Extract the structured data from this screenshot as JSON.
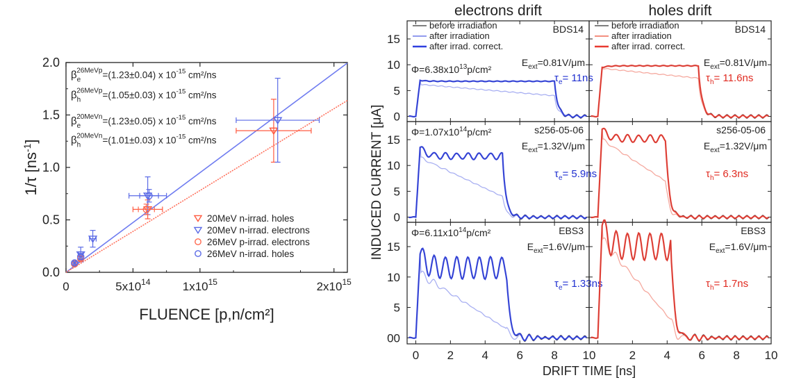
{
  "chart_data": [
    {
      "type": "scatter",
      "id": "left",
      "xlabel": "FLUENCE [p,n/cm²]",
      "ylabel_main": "1/τ [ns",
      "ylabel_sup": "-1",
      "ylabel_tail": "]",
      "xlim": [
        0,
        2100000000000000.0
      ],
      "ylim": [
        0,
        2.0
      ],
      "x_ticks": [
        {
          "value": 0,
          "base": "0",
          "exp": ""
        },
        {
          "value": 500000000000000.0,
          "base": "5x10",
          "exp": "14"
        },
        {
          "value": 1000000000000000.0,
          "base": "1x10",
          "exp": "15"
        },
        {
          "value": 2000000000000000.0,
          "base": "2x10",
          "exp": "15"
        }
      ],
      "y_ticks": [
        {
          "value": 0.0,
          "label": "0.0"
        },
        {
          "value": 0.5,
          "label": "0.5"
        },
        {
          "value": 1.0,
          "label": "1.0"
        },
        {
          "value": 1.5,
          "label": "1.5"
        },
        {
          "value": 2.0,
          "label": "2.0"
        }
      ],
      "annotations": [
        {
          "sym": "β",
          "sub": "e",
          "sup": "26MeVp",
          "text": "=(1.23±0.04) x 10",
          "exp": "-15",
          "unit": " cm²/ns",
          "y": 1.85
        },
        {
          "sym": "β",
          "sub": "h",
          "sup": "26MeVp",
          "text": "=(1.05±0.03) x 10",
          "exp": "-15",
          "unit": " cm²/ns",
          "y": 1.66
        },
        {
          "sym": "β",
          "sub": "e",
          "sup": "20MeVn",
          "text": "=(1.23±0.05) x 10",
          "exp": "-15",
          "unit": " cm²/ns",
          "y": 1.41
        },
        {
          "sym": "β",
          "sub": "h",
          "sup": "20MeVn",
          "text": "=(1.01±0.03) x 10",
          "exp": "-15",
          "unit": " cm²/ns",
          "y": 1.23
        }
      ],
      "fit_lines": [
        {
          "color": "#6f7cf0",
          "slope": 9.5e-16,
          "dashed": false
        },
        {
          "color": "#ff6f5a",
          "slope": 7.8e-16,
          "dashed": true
        }
      ],
      "series": [
        {
          "name": "20MeV n-irrad. holes",
          "marker": "triangle-down",
          "color": "#ff5a40",
          "points": [
            {
              "x": 1550000000000000.0,
              "y": 1.35,
              "xerr": 280000000000000.0,
              "yerr": 0.3
            },
            {
              "x": 610000000000000.0,
              "y": 0.6,
              "xerr": 110000000000000.0,
              "yerr": 0.09
            }
          ]
        },
        {
          "name": "20MeV n-irrad. electrons",
          "marker": "triangle-down",
          "color": "#5a6ae6",
          "points": [
            {
              "x": 1580000000000000.0,
              "y": 1.45,
              "xerr": 310000000000000.0,
              "yerr": 0.4
            },
            {
              "x": 610000000000000.0,
              "y": 0.73,
              "xerr": 140000000000000.0,
              "yerr": 0.18
            },
            {
              "x": 200000000000000.0,
              "y": 0.32,
              "xerr": 25000000000000.0,
              "yerr": 0.08
            },
            {
              "x": 110000000000000.0,
              "y": 0.17,
              "xerr": 15000000000000.0,
              "yerr": 0.07
            }
          ]
        },
        {
          "name": "26MeV p-irrad. electrons",
          "marker": "circle",
          "color": "#ff6a50",
          "points": [
            {
              "x": 600000000000000.0,
              "y": 0.6,
              "xerr": 60000000000000.0,
              "yerr": 0.05
            },
            {
              "x": 110000000000000.0,
              "y": 0.13,
              "xerr": 10000000000000.0,
              "yerr": 0.02
            },
            {
              "x": 64000000000000.0,
              "y": 0.08,
              "xerr": 6000000000000.0,
              "yerr": 0.01
            }
          ]
        },
        {
          "name": "26MeV n-irrad. holes",
          "marker": "circle",
          "color": "#5a6ae6",
          "points": [
            {
              "x": 620000000000000.0,
              "y": 0.73,
              "xerr": 70000000000000.0,
              "yerr": 0.06
            },
            {
              "x": 110000000000000.0,
              "y": 0.15,
              "xerr": 10000000000000.0,
              "yerr": 0.03
            },
            {
              "x": 64000000000000.0,
              "y": 0.09,
              "xerr": 6000000000000.0,
              "yerr": 0.01
            }
          ]
        }
      ]
    },
    {
      "type": "line",
      "id": "right",
      "xlabel": "DRIFT TIME [ns]",
      "ylabel": "INDUCED CURRENT [μA]",
      "column_titles": [
        "electrons drift",
        "holes drift"
      ],
      "xlim": [
        -0.5,
        10
      ],
      "ylim": [
        -1,
        19
      ],
      "x_ticks": [
        0,
        2,
        4,
        6,
        8,
        10
      ],
      "y_ticks": [
        0,
        5,
        10,
        15
      ],
      "x_tick_labels_left": [
        "0",
        "2",
        "4",
        "6",
        "8",
        "10"
      ],
      "x_tick_labels_right": [
        "0",
        "2",
        "4",
        "6",
        "8",
        "10"
      ],
      "y_tick_labels": [
        [
          "15",
          "10",
          "5",
          "0"
        ],
        [
          "15",
          "10",
          "5",
          "0"
        ],
        [
          "15",
          "10",
          "5",
          "00"
        ]
      ],
      "legend_labels": [
        "before irradiation",
        "after irradiation",
        "after irrad. correct."
      ],
      "rows": [
        {
          "sample": "BDS14",
          "eext_main": "E",
          "eext_sub": "ext",
          "eext_val": "=0.81V/μm",
          "phi": "Φ=6.38x10",
          "phi_exp": "13",
          "phi_unit": "p/cm²",
          "tau_e_sym": "τ",
          "tau_e_sub": "e",
          "tau_e_val": "= 11ns",
          "tau_h_sym": "τ",
          "tau_h_sub": "h",
          "tau_h_val": "= 11.6ns",
          "electrons": {
            "tend": 8.0,
            "plateau": 6.8,
            "peak": 7.0,
            "after_start": 6.2,
            "after_end": 4.0,
            "osc": 0
          },
          "holes": {
            "tend": 5.8,
            "plateau": 9.8,
            "peak": 9.5,
            "after_start": 9.3,
            "after_end": 7.4,
            "osc": 0
          }
        },
        {
          "sample": "s256-05-06",
          "eext_main": "E",
          "eext_sub": "ext",
          "eext_val": "=1.32V/μm",
          "phi": "Φ=1.07x10",
          "phi_exp": "14",
          "phi_unit": "p/cm²",
          "tau_e_sym": "τ",
          "tau_e_sub": "e",
          "tau_e_val": "= 5.9ns",
          "tau_h_sym": "τ",
          "tau_h_sub": "h",
          "tau_h_val": "= 6.3ns",
          "electrons": {
            "tend": 5.0,
            "plateau": 11.8,
            "peak": 13.5,
            "after_start": 11.5,
            "after_end": 4.0,
            "osc": 0.6
          },
          "holes": {
            "tend": 3.9,
            "plateau": 15.2,
            "peak": 17.0,
            "after_start": 15.0,
            "after_end": 7.0,
            "osc": 0.7
          }
        },
        {
          "sample": "EBS3",
          "eext_main": "E",
          "eext_sub": "ext",
          "eext_val": "=1.6V/μm",
          "phi": "Φ=6.11x10",
          "phi_exp": "14",
          "phi_unit": "p/cm²",
          "tau_e_sym": "τ",
          "tau_e_sub": "e",
          "tau_e_val": "= 1.33ns",
          "tau_h_sym": "τ",
          "tau_h_sub": "h",
          "tau_h_val": "= 1.7ns",
          "electrons": {
            "tend": 5.2,
            "plateau": 11.5,
            "peak": 13.8,
            "after_start": 10.5,
            "after_end": 1.5,
            "osc": 1.8
          },
          "holes": {
            "tend": 4.2,
            "plateau": 15.0,
            "peak": 18.5,
            "after_start": 16.0,
            "after_end": 3.0,
            "osc": 2.2
          }
        }
      ]
    }
  ]
}
